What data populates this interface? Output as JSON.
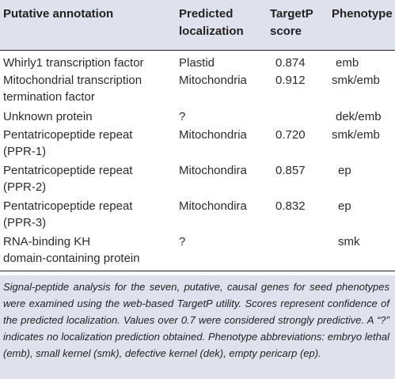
{
  "header": {
    "col1": "Putative annotation",
    "col2_line1": "Predicted",
    "col2_line2": "localization",
    "col3_line1": "TargetP",
    "col3_line2": "score",
    "col4": "Phenotype"
  },
  "rows": [
    {
      "annotation": [
        "Whirly1 transcription factor"
      ],
      "localization": "Plastid",
      "score": "0.874",
      "phenotype": "emb"
    },
    {
      "annotation": [
        "Mitochondrial transcription",
        "termination factor"
      ],
      "localization": "Mitochondria",
      "score": "0.912",
      "phenotype": "smk/emb"
    },
    {
      "annotation": [
        "Unknown protein"
      ],
      "localization": "?",
      "score": "",
      "phenotype": "dek/emb"
    },
    {
      "annotation": [
        "Pentatricopeptide repeat",
        "(PPR-1)"
      ],
      "localization": "Mitochondria",
      "score": "0.720",
      "phenotype": "smk/emb"
    },
    {
      "annotation": [
        "Pentatricopeptide repeat",
        "(PPR-2)"
      ],
      "localization": "Mitochondira",
      "score": "0.857",
      "phenotype": "ep"
    },
    {
      "annotation": [
        "Pentatricopeptide repeat",
        "(PPR-3)"
      ],
      "localization": "Mitochondira",
      "score": "0.832",
      "phenotype": "ep"
    },
    {
      "annotation": [
        "RNA-binding KH",
        "domain-containing protein"
      ],
      "localization": "?",
      "score": "",
      "phenotype": "smk"
    }
  ],
  "footnote": "Signal-peptide analysis for the seven, putative, causal genes for seed phenotypes were examined using the web-based TargetP utility. Scores represent confidence of the predicted localization. Values over 0.7 were considered strongly predictive. A “?” indicates no localization prediction obtained. Phenotype abbreviations: embryo lethal (emb), small kernel (smk), defective kernel (dek), empty pericarp (ep)."
}
